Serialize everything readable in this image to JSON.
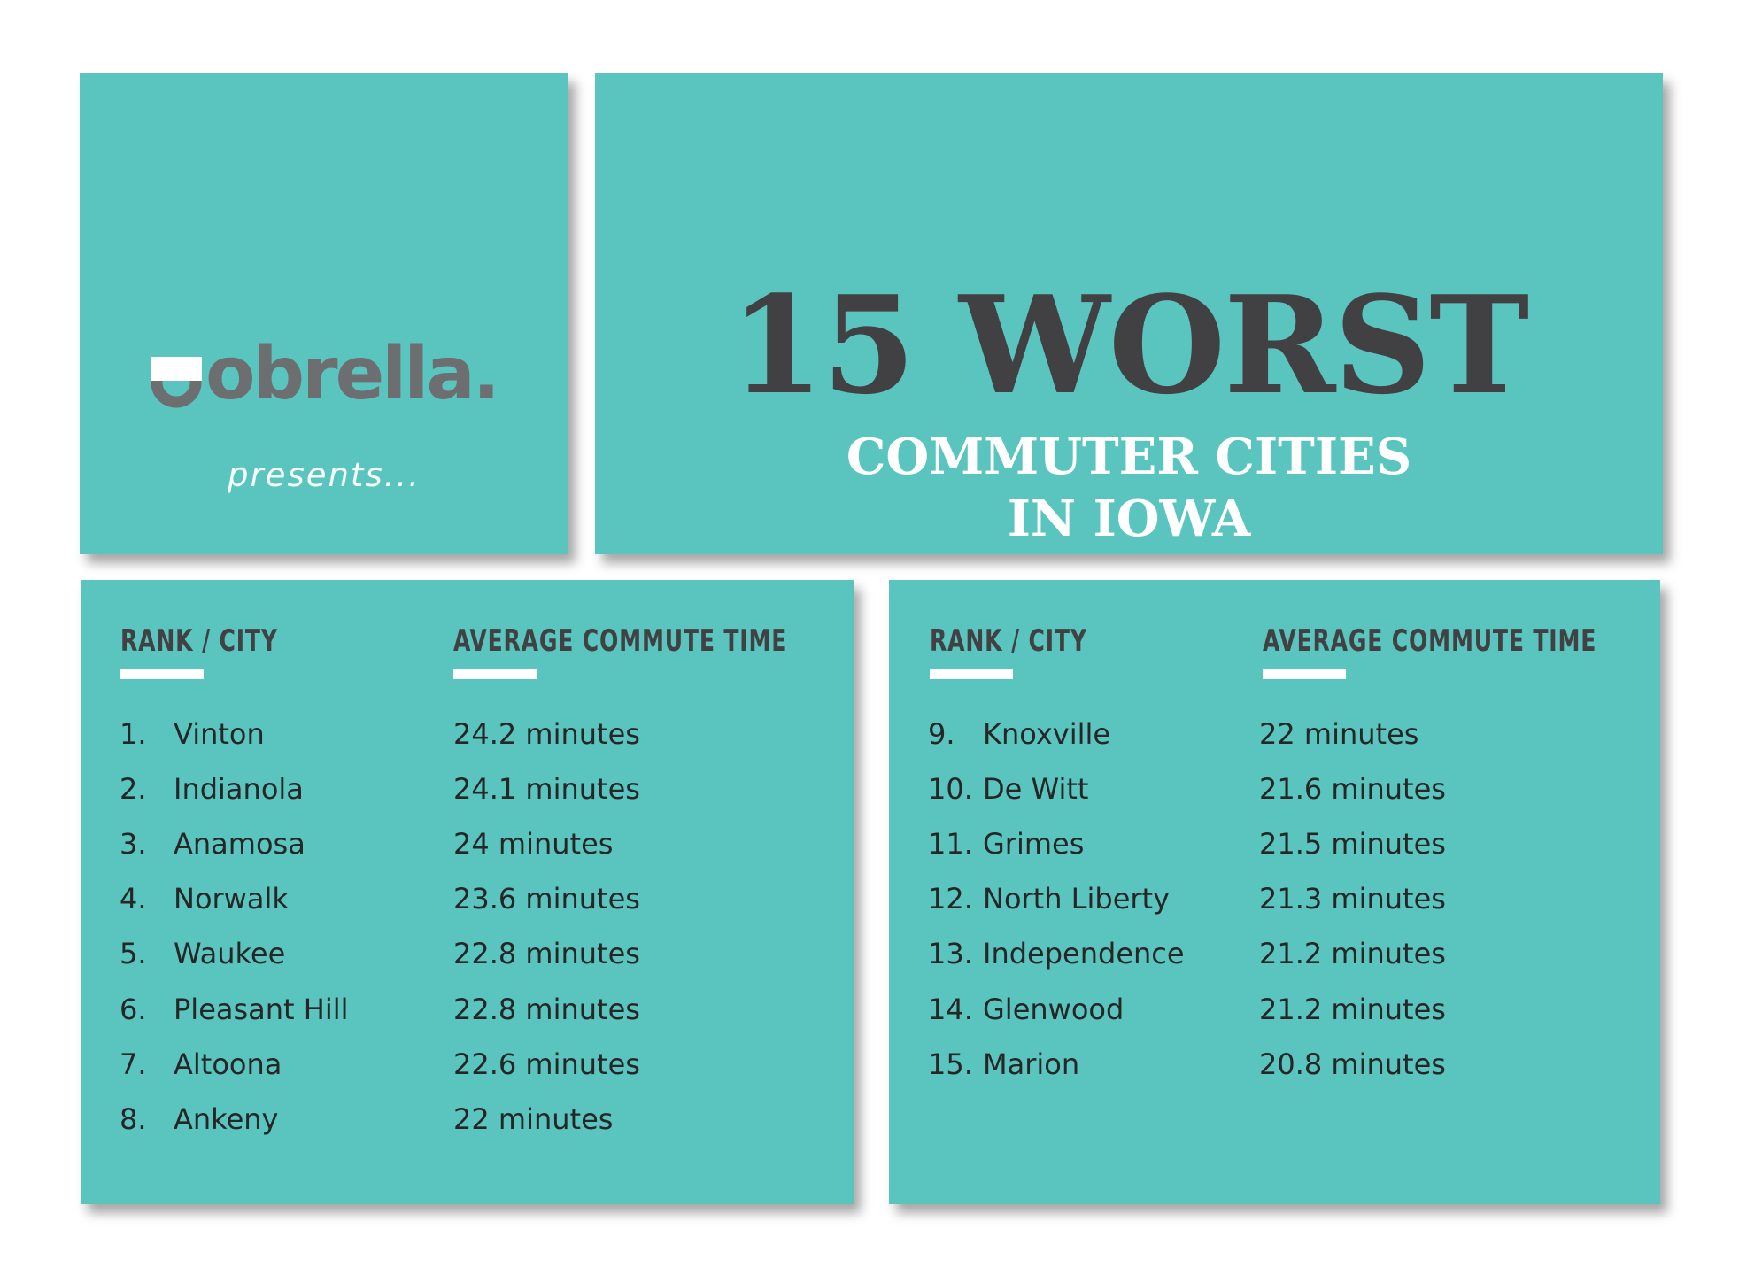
{
  "logo": {
    "brand": "obrella",
    "dot": ".",
    "tagline": "presents..."
  },
  "title": {
    "main": "15 WORST",
    "line1": "COMMUTER CITIES",
    "line2": "IN IOWA"
  },
  "table_left": {
    "header_rank_city": "RANK / CITY",
    "header_commute": "AVERAGE COMMUTE TIME",
    "rows": [
      {
        "rank": "1.",
        "city": "Vinton",
        "time": "24.2 minutes"
      },
      {
        "rank": "2.",
        "city": "Indianola",
        "time": "24.1 minutes"
      },
      {
        "rank": "3.",
        "city": "Anamosa",
        "time": "24 minutes"
      },
      {
        "rank": "4.",
        "city": "Norwalk",
        "time": "23.6 minutes"
      },
      {
        "rank": "5.",
        "city": "Waukee",
        "time": "22.8 minutes"
      },
      {
        "rank": "6.",
        "city": "Pleasant Hill",
        "time": "22.8 minutes"
      },
      {
        "rank": "7.",
        "city": "Altoona",
        "time": "22.6 minutes"
      },
      {
        "rank": "8.",
        "city": "Ankeny",
        "time": "22 minutes"
      }
    ]
  },
  "table_right": {
    "header_rank_city": "RANK / CITY",
    "header_commute": "AVERAGE COMMUTE TIME",
    "rows": [
      {
        "rank": "9.",
        "city": "Knoxville",
        "time": "22 minutes"
      },
      {
        "rank": "10.",
        "city": "De Witt",
        "time": "21.6 minutes"
      },
      {
        "rank": "11.",
        "city": "Grimes",
        "time": "21.5 minutes"
      },
      {
        "rank": "12.",
        "city": "North Liberty",
        "time": "21.3 minutes"
      },
      {
        "rank": "13.",
        "city": "Independence",
        "time": "21.2 minutes"
      },
      {
        "rank": "14.",
        "city": "Glenwood",
        "time": "21.2 minutes"
      },
      {
        "rank": "15.",
        "city": "Marion",
        "time": "20.8 minutes"
      }
    ]
  },
  "colors": {
    "card": "#5ac4bf",
    "dark_text": "#414042",
    "logo_gray": "#6d6e70",
    "white": "#ffffff"
  }
}
